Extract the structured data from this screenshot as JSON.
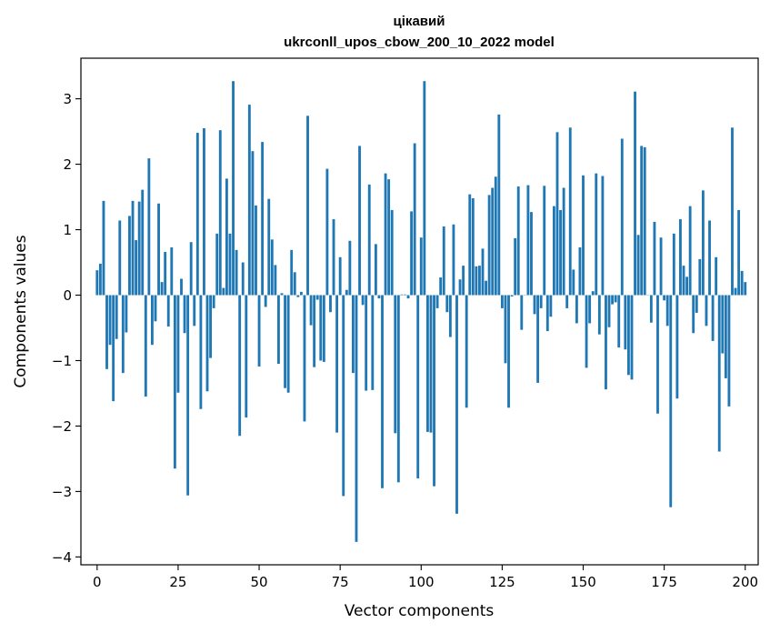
{
  "chart_data": {
    "type": "bar",
    "title": "цікавий",
    "subtitle": "ukrconll_upos_cbow_200_10_2022 model",
    "xlabel": "Vector components",
    "ylabel": "Components values",
    "xlim": [
      -5,
      204
    ],
    "ylim": [
      -4.12,
      3.62
    ],
    "xticks": [
      0,
      25,
      50,
      75,
      100,
      125,
      150,
      175,
      200
    ],
    "xtick_labels": [
      "0",
      "25",
      "50",
      "75",
      "100",
      "125",
      "150",
      "175",
      "200"
    ],
    "yticks": [
      -4,
      -3,
      -2,
      -1,
      0,
      1,
      2,
      3
    ],
    "ytick_labels": [
      "−4",
      "−3",
      "−2",
      "−1",
      "0",
      "1",
      "2",
      "3"
    ],
    "bar_color": "#1f77b4",
    "grid": false,
    "values": [
      0.38,
      0.48,
      1.44,
      -1.13,
      -0.76,
      -1.62,
      -0.67,
      1.14,
      -1.19,
      -0.57,
      1.21,
      1.44,
      0.84,
      1.43,
      1.61,
      -1.55,
      2.09,
      -0.76,
      -0.4,
      1.4,
      0.2,
      0.66,
      -0.48,
      0.73,
      -2.65,
      -1.49,
      0.25,
      -0.58,
      -3.06,
      0.81,
      -0.47,
      2.48,
      -1.74,
      2.55,
      -1.47,
      -0.96,
      -0.2,
      0.94,
      2.52,
      0.11,
      1.78,
      0.94,
      3.27,
      0.69,
      -2.15,
      0.5,
      -1.87,
      2.91,
      2.2,
      1.37,
      -1.09,
      2.34,
      -0.18,
      1.47,
      0.85,
      0.46,
      -1.05,
      0.03,
      -1.42,
      -1.49,
      0.69,
      0.35,
      -0.03,
      0.05,
      -1.93,
      2.74,
      -0.46,
      -1.1,
      -0.07,
      -1.0,
      -1.02,
      1.93,
      -0.26,
      1.16,
      -2.1,
      0.58,
      -3.07,
      0.08,
      0.83,
      -1.19,
      -3.77,
      2.28,
      -0.15,
      -1.46,
      1.69,
      -1.45,
      0.78,
      -0.05,
      -2.95,
      1.86,
      1.77,
      1.3,
      -2.11,
      -2.86,
      0.01,
      0.01,
      -0.05,
      1.28,
      2.32,
      -2.8,
      0.88,
      3.27,
      -2.09,
      -2.1,
      -2.92,
      -0.2,
      0.27,
      1.05,
      -0.26,
      -0.64,
      1.08,
      -3.34,
      0.24,
      0.45,
      -1.72,
      1.54,
      1.48,
      0.44,
      0.45,
      0.71,
      0.22,
      1.53,
      1.64,
      1.81,
      2.76,
      -0.2,
      -1.04,
      -1.72,
      -0.02,
      0.87,
      1.66,
      -0.53,
      0.0,
      1.68,
      1.27,
      -0.29,
      -1.34,
      -0.2,
      1.67,
      -0.55,
      -0.33,
      1.36,
      2.49,
      1.3,
      1.64,
      -0.2,
      2.56,
      0.39,
      -0.43,
      0.73,
      1.83,
      -1.11,
      -0.43,
      0.06,
      1.86,
      -0.6,
      1.82,
      -1.44,
      -0.49,
      -0.14,
      -0.11,
      -0.8,
      2.39,
      -0.83,
      -1.22,
      -1.29,
      3.11,
      0.92,
      2.28,
      2.26,
      0.0,
      -0.42,
      1.12,
      -1.81,
      0.88,
      -0.08,
      -0.47,
      -3.24,
      0.94,
      -1.58,
      1.16,
      0.45,
      0.28,
      1.36,
      -0.58,
      -0.27,
      0.55,
      1.6,
      -0.47,
      1.14,
      -0.7,
      0.58,
      -2.39,
      -0.89,
      -1.27,
      -1.7,
      2.56,
      0.11,
      1.3,
      0.37,
      0.2
    ]
  }
}
